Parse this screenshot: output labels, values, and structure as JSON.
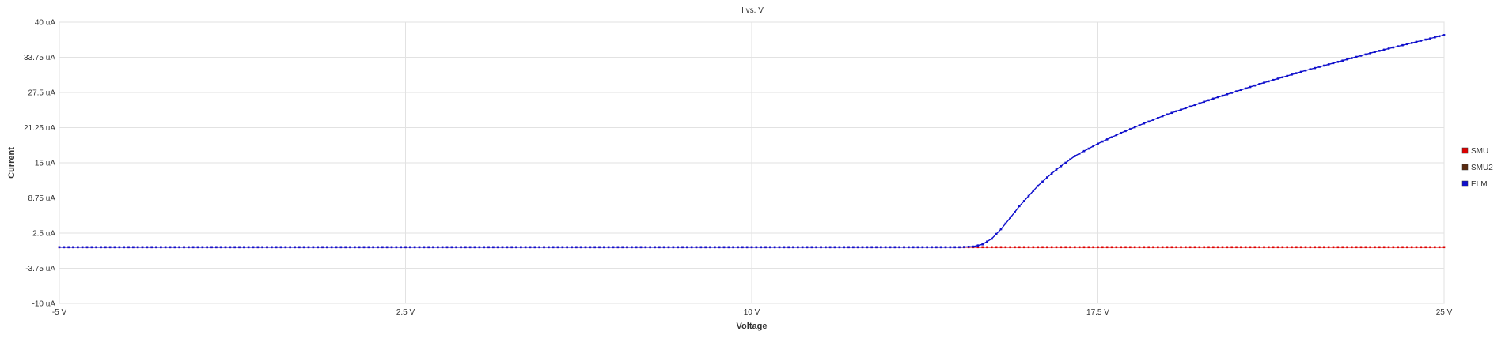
{
  "chart_data": {
    "type": "line",
    "title": "I vs. V",
    "xlabel": "Voltage",
    "ylabel": "Current",
    "xlim": [
      -5,
      25
    ],
    "ylim": [
      -10,
      40
    ],
    "x_ticks": [
      -5,
      2.5,
      10,
      17.5,
      25
    ],
    "x_tick_labels": [
      "-5 V",
      "2.5 V",
      "10 V",
      "17.5 V",
      "25 V"
    ],
    "y_ticks": [
      -10,
      -3.75,
      2.5,
      8.75,
      15,
      21.25,
      27.5,
      33.75,
      40
    ],
    "y_tick_labels": [
      "-10 uA",
      "-3.75 uA",
      "2.5 uA",
      "8.75 uA",
      "15 uA",
      "21.25 uA",
      "27.5 uA",
      "33.75 uA",
      "40 uA"
    ],
    "grid": true,
    "legend_position": "right",
    "series": [
      {
        "name": "SMU",
        "color": "#dd0000",
        "x": [
          -5,
          0,
          5,
          10,
          14.5,
          15,
          15.5,
          16,
          17,
          18,
          19,
          20,
          21,
          22,
          23,
          24,
          25
        ],
        "y": [
          0,
          0,
          0,
          0,
          0,
          0,
          0,
          0,
          0,
          0,
          0,
          0,
          0,
          0,
          0,
          0,
          0
        ]
      },
      {
        "name": "SMU2",
        "color": "#5a2a10",
        "x": [],
        "y": []
      },
      {
        "name": "ELM",
        "color": "#1010cc",
        "x": [
          -5,
          0,
          5,
          10,
          14.5,
          14.8,
          15.0,
          15.2,
          15.4,
          15.6,
          15.8,
          16.0,
          16.2,
          16.4,
          16.6,
          16.8,
          17.0,
          17.5,
          18.0,
          18.5,
          19.0,
          19.5,
          20.0,
          20.5,
          21.0,
          21.5,
          22.0,
          22.5,
          23.0,
          23.5,
          24.0,
          24.5,
          25.0
        ],
        "y": [
          0,
          0,
          0,
          0,
          0,
          0.1,
          0.5,
          1.5,
          3.2,
          5.2,
          7.3,
          9.1,
          10.9,
          12.4,
          13.8,
          15.0,
          16.2,
          18.4,
          20.3,
          22.0,
          23.6,
          25.0,
          26.4,
          27.7,
          29.0,
          30.2,
          31.4,
          32.5,
          33.6,
          34.7,
          35.7,
          36.7,
          37.7
        ]
      }
    ]
  }
}
